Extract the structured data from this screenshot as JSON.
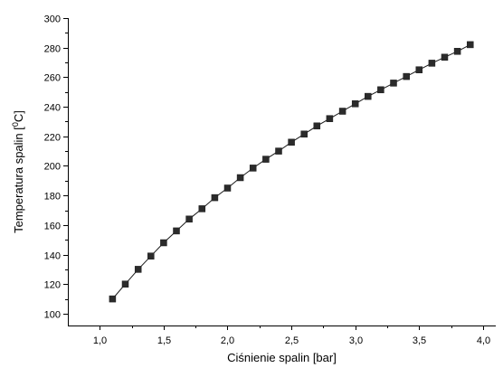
{
  "chart_data": {
    "type": "line",
    "xlabel": "Ciśnienie spalin [bar]",
    "ylabel": "Temperatura spalin [°C]",
    "ylabel_base": "Temperatura spalin [",
    "ylabel_sup": "0",
    "ylabel_end": "C]",
    "xlim": [
      0.75,
      4.1
    ],
    "ylim": [
      92,
      300
    ],
    "x_ticks": [
      1.0,
      1.5,
      2.0,
      2.5,
      3.0,
      3.5,
      4.0
    ],
    "x_tick_labels": [
      "1,0",
      "1,5",
      "2,0",
      "2,5",
      "3,0",
      "3,5",
      "4,0"
    ],
    "y_ticks": [
      100,
      120,
      140,
      160,
      180,
      200,
      220,
      240,
      260,
      280,
      300
    ],
    "y_tick_labels": [
      "100",
      "120",
      "140",
      "160",
      "180",
      "200",
      "220",
      "240",
      "260",
      "280",
      "300"
    ],
    "grid": false,
    "marker": "square",
    "series": [
      {
        "x": [
          1.1,
          1.2,
          1.3,
          1.4,
          1.5,
          1.6,
          1.7,
          1.8,
          1.9,
          2.0,
          2.1,
          2.2,
          2.3,
          2.4,
          2.5,
          2.6,
          2.7,
          2.8,
          2.9,
          3.0,
          3.1,
          3.2,
          3.3,
          3.4,
          3.5,
          3.6,
          3.7,
          3.8,
          3.9
        ],
        "y": [
          110,
          120,
          130,
          139,
          148,
          156,
          164,
          171,
          178.5,
          185,
          192,
          198.5,
          204.5,
          210,
          216,
          221.5,
          227,
          232,
          237,
          242,
          247,
          251.5,
          256,
          260.5,
          265,
          269.5,
          273.5,
          277.5,
          282
        ]
      }
    ]
  }
}
